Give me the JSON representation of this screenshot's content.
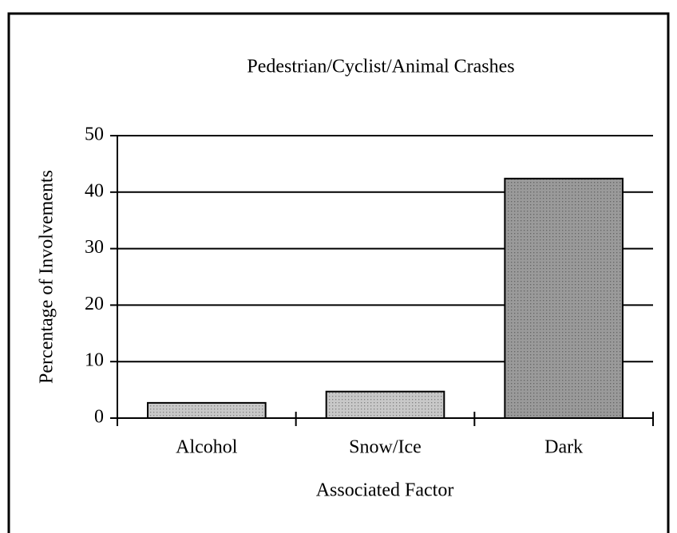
{
  "chart_data": {
    "type": "bar",
    "title": "Pedestrian/Cyclist/Animal Crashes",
    "xlabel": "Associated Factor",
    "ylabel": "Percentage of Involvements",
    "categories": [
      "Alcohol",
      "Snow/Ice",
      "Dark"
    ],
    "values": [
      2.7,
      4.7,
      42.4
    ],
    "colors": [
      "#c8c8c8",
      "#c8c8c8",
      "#9a9a9a"
    ],
    "ylim": [
      0,
      50
    ],
    "yticks": [
      0,
      10,
      20,
      30,
      40,
      50
    ],
    "grid": true
  }
}
